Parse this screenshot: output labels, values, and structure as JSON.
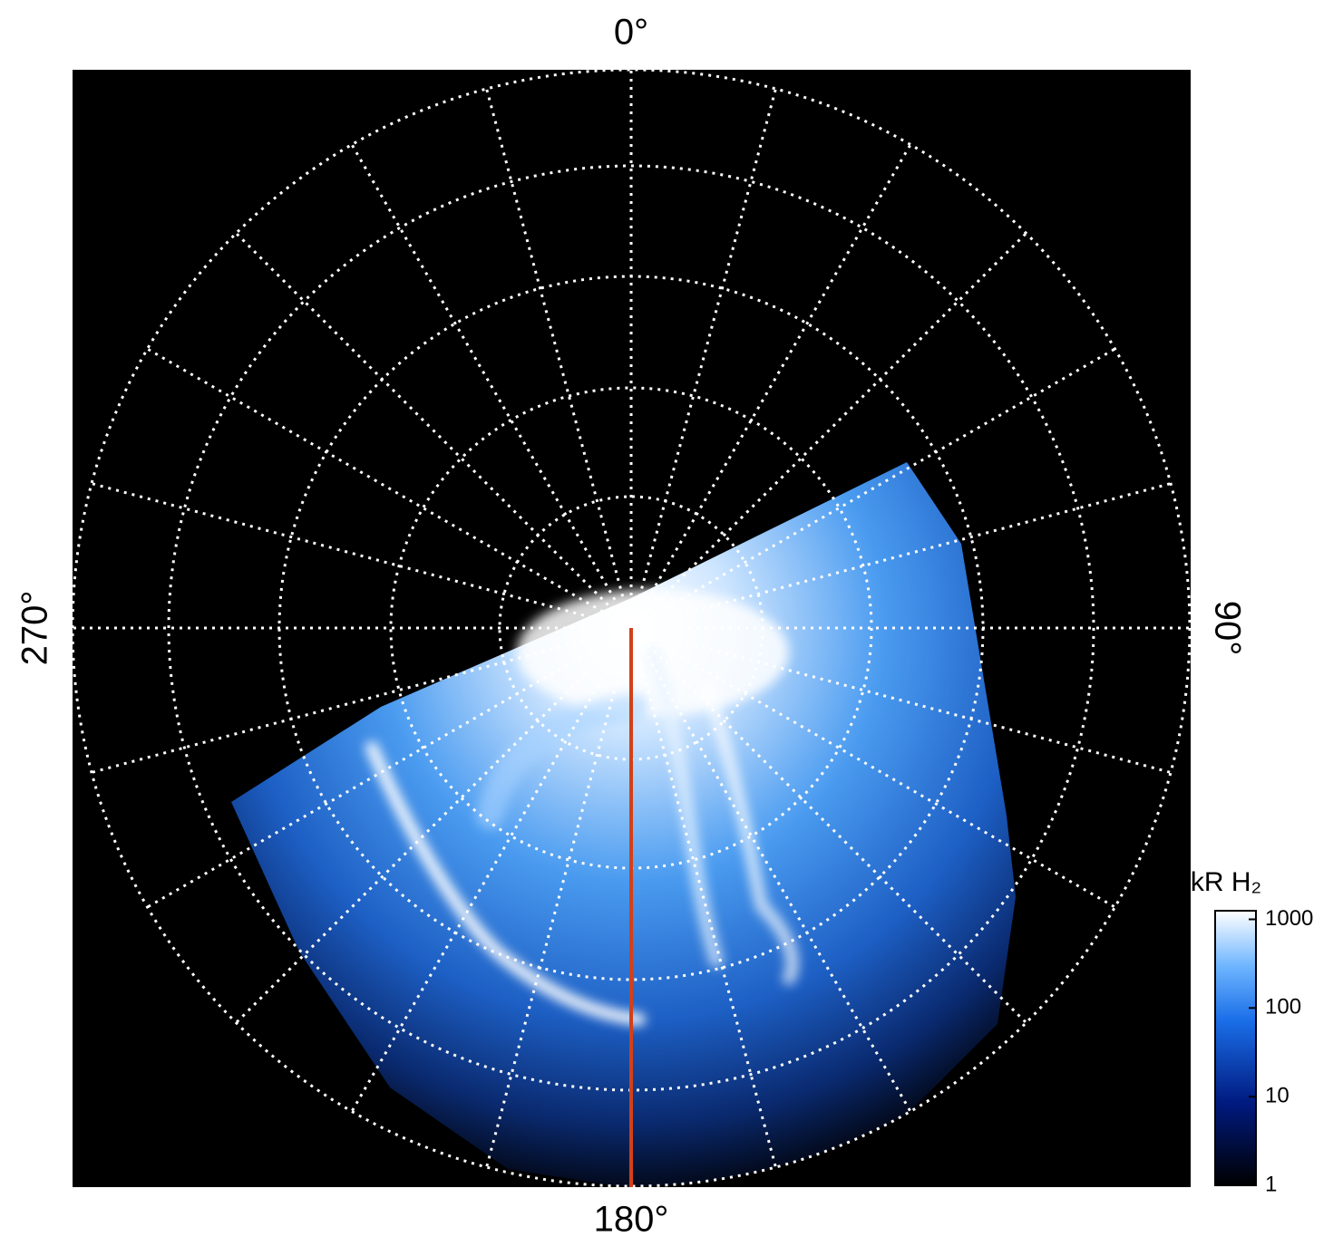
{
  "chart_data": {
    "type": "polar-map",
    "angle_ticks": [
      {
        "value": 0,
        "label": "0°"
      },
      {
        "value": 90,
        "label": "90°"
      },
      {
        "value": 180,
        "label": "180°"
      },
      {
        "value": 270,
        "label": "270°"
      }
    ],
    "colorbar": {
      "label": "kR H₂",
      "log": true,
      "clim": [
        1,
        1250
      ],
      "ticks": [
        1,
        10,
        100,
        1000
      ]
    }
  }
}
